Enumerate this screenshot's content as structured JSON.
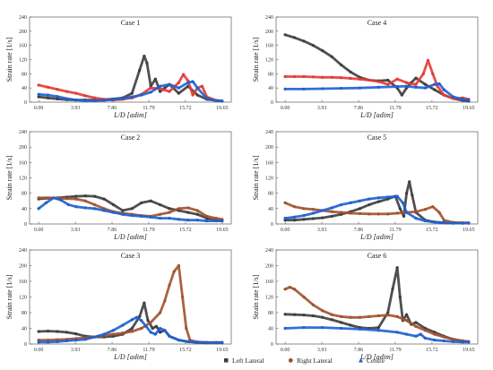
{
  "chart_data": [
    {
      "type": "line",
      "title": "Case 1",
      "xlabel": "L/D [adim]",
      "ylabel": "Strain rate [1/s]",
      "xlim": [
        0,
        19.65
      ],
      "ylim": [
        0,
        240
      ],
      "xticks": [
        "0.00",
        "3.93",
        "7.86",
        "11.79",
        "15.72",
        "19.65"
      ],
      "yticks": [
        "0",
        "40",
        "80",
        "120",
        "160",
        "200",
        "240"
      ],
      "series": [
        {
          "name": "Left Lateral",
          "color": "#3d3d3d",
          "x": [
            0,
            1,
            2,
            3,
            4,
            5,
            6,
            7,
            8,
            9,
            10,
            10.8,
            11.3,
            11.6,
            12,
            12.5,
            13,
            13.5,
            14,
            15,
            16,
            17,
            18,
            19.65
          ],
          "y": [
            15,
            12,
            9,
            7,
            6,
            6,
            6,
            7,
            9,
            12,
            25,
            90,
            130,
            110,
            45,
            65,
            30,
            40,
            50,
            25,
            45,
            20,
            8,
            3
          ]
        },
        {
          "name": "Right Lateral",
          "color": "#e53935",
          "x": [
            0,
            1,
            2,
            3,
            4,
            5,
            6,
            7,
            8,
            9,
            10,
            11,
            12,
            13,
            14,
            15,
            15.5,
            16,
            16.5,
            17,
            17.5,
            18,
            19,
            19.65
          ],
          "y": [
            48,
            42,
            36,
            30,
            25,
            18,
            12,
            8,
            6,
            8,
            12,
            22,
            40,
            38,
            30,
            55,
            78,
            60,
            20,
            40,
            45,
            15,
            5,
            3
          ]
        },
        {
          "name": "Centre",
          "color": "#1e60d0",
          "x": [
            0,
            1,
            2,
            3,
            4,
            5,
            6,
            7,
            8,
            9,
            10,
            11,
            12,
            13,
            14,
            15,
            16,
            16.5,
            17,
            18,
            19,
            19.65
          ],
          "y": [
            22,
            20,
            16,
            10,
            6,
            4,
            4,
            5,
            7,
            10,
            15,
            20,
            28,
            45,
            50,
            40,
            55,
            58,
            40,
            10,
            4,
            3
          ]
        }
      ]
    },
    {
      "type": "line",
      "title": "Case 4",
      "xlabel": "L/D [adim]",
      "ylabel": "Strain rate [1/s]",
      "xlim": [
        0,
        19.65
      ],
      "ylim": [
        0,
        240
      ],
      "xticks": [
        "0.00",
        "3.93",
        "7.86",
        "11.79",
        "15.72",
        "19.65"
      ],
      "yticks": [
        "0",
        "40",
        "80",
        "120",
        "160",
        "200",
        "240"
      ],
      "series": [
        {
          "name": "Left Lateral",
          "color": "#3d3d3d",
          "x": [
            0,
            1,
            2,
            3,
            4,
            5,
            6,
            7,
            8,
            9,
            10,
            11,
            12,
            12.5,
            13,
            13.5,
            14,
            15,
            16,
            17,
            18,
            19,
            19.65
          ],
          "y": [
            190,
            182,
            172,
            160,
            145,
            128,
            105,
            85,
            70,
            62,
            60,
            62,
            40,
            20,
            40,
            55,
            68,
            50,
            35,
            20,
            10,
            5,
            3
          ]
        },
        {
          "name": "Right Lateral",
          "color": "#e53935",
          "x": [
            0,
            1,
            2,
            3,
            4,
            5,
            6,
            7,
            8,
            9,
            10,
            11,
            12,
            13,
            14,
            14.8,
            15.3,
            15.8,
            16.3,
            17,
            18,
            19,
            19.65
          ],
          "y": [
            72,
            72,
            72,
            71,
            70,
            70,
            69,
            67,
            65,
            62,
            58,
            50,
            65,
            55,
            50,
            80,
            118,
            80,
            45,
            20,
            10,
            12,
            8
          ]
        },
        {
          "name": "Centre",
          "color": "#1e60d0",
          "x": [
            0,
            2,
            4,
            6,
            8,
            10,
            12,
            13,
            14,
            15,
            16,
            16.5,
            17,
            18,
            19,
            19.65
          ],
          "y": [
            37,
            37,
            38,
            39,
            40,
            42,
            44,
            45,
            42,
            40,
            50,
            52,
            35,
            15,
            8,
            6
          ]
        }
      ]
    },
    {
      "type": "line",
      "title": "Case 2",
      "xlabel": "L/D [adim]",
      "ylabel": "Strain rate [1/s]",
      "xlim": [
        0,
        19.65
      ],
      "ylim": [
        0,
        240
      ],
      "xticks": [
        "0.00",
        "3.93",
        "7.86",
        "11.79",
        "15.72",
        "19.65"
      ],
      "yticks": [
        "0",
        "40",
        "80",
        "120",
        "160",
        "200",
        "240"
      ],
      "series": [
        {
          "name": "Left Lateral",
          "color": "#3d3d3d",
          "x": [
            0,
            1,
            2,
            3,
            4,
            5,
            6,
            7,
            8,
            9,
            10,
            11,
            12,
            13,
            14,
            15,
            16,
            17,
            18,
            19,
            19.65
          ],
          "y": [
            65,
            67,
            68,
            70,
            72,
            73,
            72,
            65,
            50,
            35,
            40,
            55,
            60,
            50,
            40,
            35,
            30,
            25,
            15,
            10,
            8
          ]
        },
        {
          "name": "Right Lateral",
          "color": "#a0522d",
          "x": [
            0,
            1,
            2,
            3,
            4,
            5,
            6,
            7,
            8,
            9,
            10,
            11,
            12,
            13,
            14,
            15,
            16,
            17,
            18,
            19,
            19.65
          ],
          "y": [
            68,
            68,
            67,
            66,
            65,
            60,
            50,
            40,
            32,
            28,
            25,
            22,
            20,
            25,
            30,
            40,
            42,
            35,
            20,
            15,
            12
          ]
        },
        {
          "name": "Centre",
          "color": "#1e60d0",
          "x": [
            0,
            0.8,
            1.6,
            2.4,
            3.2,
            4,
            5,
            6,
            7,
            8,
            9,
            10,
            11,
            12,
            13,
            14,
            15,
            16,
            17,
            18,
            19,
            19.65
          ],
          "y": [
            40,
            55,
            68,
            62,
            50,
            45,
            42,
            40,
            35,
            30,
            25,
            22,
            20,
            18,
            15,
            15,
            12,
            10,
            10,
            8,
            8,
            8
          ]
        }
      ]
    },
    {
      "type": "line",
      "title": "Case 5",
      "xlabel": "L/D [adim]",
      "ylabel": "Strain rate [1/s]",
      "xlim": [
        0,
        19.65
      ],
      "ylim": [
        0,
        240
      ],
      "xticks": [
        "0.00",
        "3.93",
        "7.86",
        "11.79",
        "15.72",
        "19.65"
      ],
      "yticks": [
        "0",
        "40",
        "80",
        "120",
        "160",
        "200",
        "240"
      ],
      "series": [
        {
          "name": "Left Lateral",
          "color": "#3d3d3d",
          "x": [
            0,
            1,
            2,
            3,
            4,
            5,
            6,
            7,
            8,
            9,
            10,
            11,
            11.8,
            12.3,
            12.7,
            13,
            13.3,
            13.6,
            14,
            15,
            16,
            17,
            18,
            19,
            19.65
          ],
          "y": [
            10,
            10,
            12,
            14,
            16,
            20,
            25,
            32,
            40,
            50,
            58,
            65,
            72,
            40,
            20,
            80,
            110,
            75,
            30,
            10,
            5,
            3,
            2,
            2,
            2
          ]
        },
        {
          "name": "Right Lateral",
          "color": "#a0522d",
          "x": [
            0,
            1,
            2,
            3,
            4,
            5,
            6,
            7,
            8,
            9,
            10,
            11,
            12,
            13,
            14,
            15,
            15.8,
            16.5,
            17,
            18,
            19,
            19.65
          ],
          "y": [
            55,
            45,
            40,
            38,
            35,
            32,
            30,
            28,
            27,
            26,
            26,
            26,
            28,
            30,
            32,
            38,
            45,
            30,
            10,
            4,
            3,
            3
          ]
        },
        {
          "name": "Centre",
          "color": "#1e60d0",
          "x": [
            0,
            1,
            2,
            3,
            4,
            5,
            6,
            7,
            8,
            9,
            10,
            11,
            12,
            12.6,
            13,
            14,
            15,
            16,
            17,
            18,
            19,
            19.65
          ],
          "y": [
            15,
            18,
            22,
            28,
            35,
            42,
            50,
            55,
            60,
            65,
            68,
            70,
            72,
            55,
            30,
            15,
            8,
            5,
            3,
            2,
            2,
            2
          ]
        }
      ]
    },
    {
      "type": "line",
      "title": "Case 3",
      "xlabel": "L/D [adim]",
      "ylabel": "Strain rate [1/s]",
      "xlim": [
        0,
        19.65
      ],
      "ylim": [
        0,
        240
      ],
      "xticks": [
        "0.00",
        "3.93",
        "7.86",
        "11.79",
        "15.72",
        "19.65"
      ],
      "yticks": [
        "0",
        "40",
        "80",
        "120",
        "160",
        "200",
        "240"
      ],
      "series": [
        {
          "name": "Left Lateral",
          "color": "#3d3d3d",
          "x": [
            0,
            1,
            2,
            3,
            4,
            5,
            6,
            7,
            8,
            9,
            10,
            10.8,
            11.3,
            11.7,
            12.2,
            12.6,
            13,
            13.5,
            14,
            15,
            16,
            17,
            18,
            19,
            19.65
          ],
          "y": [
            32,
            33,
            32,
            30,
            26,
            20,
            18,
            18,
            20,
            25,
            40,
            70,
            105,
            60,
            40,
            45,
            30,
            35,
            20,
            10,
            6,
            4,
            3,
            3,
            3
          ]
        },
        {
          "name": "Right Lateral",
          "color": "#a0522d",
          "x": [
            0,
            1,
            2,
            3,
            4,
            5,
            6,
            7,
            8,
            9,
            10,
            11,
            12,
            13,
            13.5,
            14,
            14.5,
            15,
            15.4,
            15.8,
            16.2,
            17,
            18,
            19,
            19.65
          ],
          "y": [
            10,
            10,
            11,
            12,
            14,
            16,
            18,
            22,
            25,
            28,
            32,
            40,
            55,
            80,
            110,
            150,
            185,
            200,
            120,
            40,
            10,
            5,
            4,
            4,
            4
          ]
        },
        {
          "name": "Centre",
          "color": "#1e60d0",
          "x": [
            0,
            1,
            2,
            3,
            4,
            5,
            6,
            7,
            8,
            9,
            10,
            10.5,
            11,
            11.5,
            12,
            12.5,
            13,
            13.5,
            14,
            15,
            16,
            17,
            18,
            19,
            19.65
          ],
          "y": [
            5,
            5,
            6,
            8,
            10,
            12,
            18,
            25,
            35,
            48,
            62,
            68,
            60,
            45,
            30,
            25,
            40,
            35,
            20,
            10,
            6,
            5,
            4,
            4,
            4
          ]
        }
      ]
    },
    {
      "type": "line",
      "title": "Case 6",
      "xlabel": "L/D [adim]",
      "ylabel": "Strain rate [1/s]",
      "xlim": [
        0,
        19.65
      ],
      "ylim": [
        0,
        240
      ],
      "xticks": [
        "0.00",
        "3.93",
        "7.86",
        "11.79",
        "15.72",
        "19.65"
      ],
      "yticks": [
        "0",
        "40",
        "80",
        "120",
        "160",
        "200",
        "240"
      ],
      "series": [
        {
          "name": "Left Lateral",
          "color": "#3d3d3d",
          "x": [
            0,
            1,
            2,
            3,
            4,
            5,
            6,
            7,
            8,
            9,
            10,
            11,
            11.5,
            12,
            12.3,
            12.6,
            13,
            13.5,
            14,
            15,
            16,
            17,
            18,
            19,
            19.65
          ],
          "y": [
            76,
            75,
            74,
            72,
            68,
            62,
            55,
            48,
            42,
            40,
            42,
            80,
            140,
            195,
            120,
            60,
            75,
            50,
            55,
            40,
            30,
            20,
            12,
            8,
            6
          ]
        },
        {
          "name": "Right Lateral",
          "color": "#a0522d",
          "x": [
            0,
            0.5,
            1,
            2,
            3,
            4,
            5,
            6,
            7,
            8,
            9,
            10,
            11,
            12,
            13,
            14,
            15,
            16,
            17,
            18,
            19,
            19.65
          ],
          "y": [
            140,
            145,
            140,
            120,
            100,
            85,
            75,
            70,
            68,
            68,
            70,
            72,
            74,
            70,
            60,
            45,
            35,
            25,
            18,
            12,
            8,
            6
          ]
        },
        {
          "name": "Centre",
          "color": "#1e60d0",
          "x": [
            0,
            2,
            4,
            6,
            8,
            10,
            12,
            13,
            14,
            14.5,
            15,
            16,
            17,
            18,
            19,
            19.65
          ],
          "y": [
            40,
            42,
            42,
            40,
            38,
            35,
            30,
            25,
            20,
            25,
            15,
            10,
            8,
            6,
            5,
            5
          ]
        }
      ]
    }
  ],
  "legend": {
    "items": [
      {
        "label": "Left Lateral",
        "color": "#3d3d3d",
        "marker": "square"
      },
      {
        "label": "Right Lateral",
        "color": "#a0522d",
        "marker": "circle"
      },
      {
        "label": "Centre",
        "color": "#1e60d0",
        "marker": "triangle"
      }
    ]
  }
}
